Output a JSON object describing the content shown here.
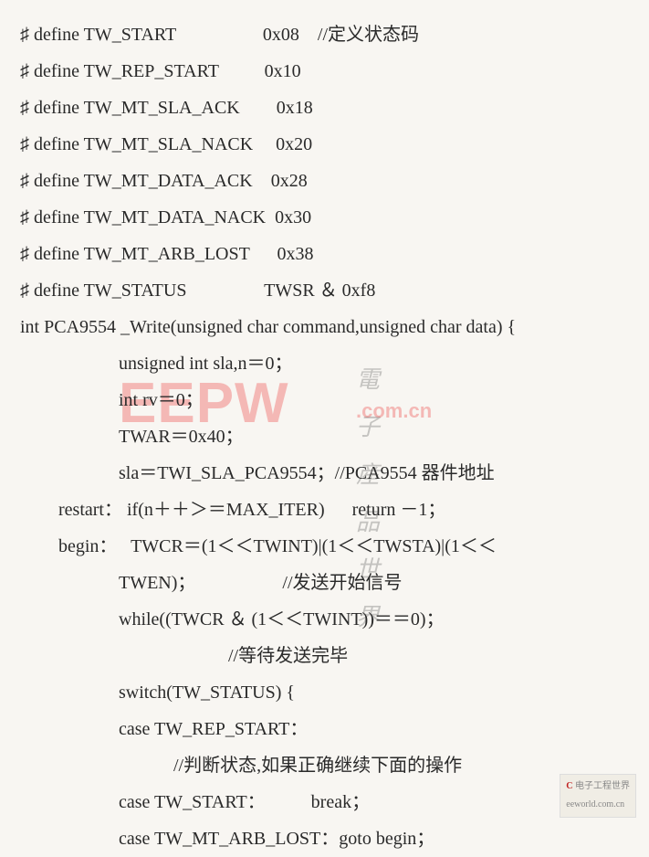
{
  "defines": [
    {
      "hash": "♯",
      "keyword": "define",
      "name": "TW_START",
      "value": "0x08",
      "comment": "//定义状态码"
    },
    {
      "hash": "♯",
      "keyword": "define",
      "name": "TW_REP_START",
      "value": "0x10",
      "comment": ""
    },
    {
      "hash": "♯",
      "keyword": "define",
      "name": "TW_MT_SLA_ACK",
      "value": "0x18",
      "comment": ""
    },
    {
      "hash": "♯",
      "keyword": "define",
      "name": "TW_MT_SLA_NACK",
      "value": "0x20",
      "comment": ""
    },
    {
      "hash": "♯",
      "keyword": "define",
      "name": "TW_MT_DATA_ACK",
      "value": "0x28",
      "comment": ""
    },
    {
      "hash": "♯",
      "keyword": "define",
      "name": "TW_MT_DATA_NACK",
      "value": "0x30",
      "comment": ""
    },
    {
      "hash": "♯",
      "keyword": "define",
      "name": "TW_MT_ARB_LOST",
      "value": "0x38",
      "comment": ""
    },
    {
      "hash": "♯",
      "keyword": "define",
      "name": "TW_STATUS",
      "value": "TWSR ＆ 0xf8",
      "comment": ""
    }
  ],
  "func_sig": "int PCA9554 _Write(unsigned char command,unsigned char data) {",
  "body": [
    "unsigned int sla,n＝0；",
    "int rv＝0；",
    "TWAR＝0x40；",
    "sla＝TWI_SLA_PCA9554；//PCA9554 器件地址"
  ],
  "restart_label": "restart：",
  "restart_code": "if(n＋＋＞＝MAX_ITER)      return －1；",
  "begin_label": "begin：",
  "begin_line1": "TWCR＝(1＜＜TWINT)|(1＜＜TWSTA)|(1＜＜",
  "begin_line2": "TWEN)；                   //发送开始信号",
  "begin_line3": "while((TWCR ＆ (1＜＜TWINT))＝＝0)；",
  "begin_line4": "                        //等待发送完毕",
  "begin_line5": "switch(TW_STATUS) {",
  "begin_line6": "case TW_REP_START：",
  "begin_line7": "            //判断状态,如果正确继续下面的操作",
  "begin_line8": "case TW_START：          break；",
  "begin_line9": "case TW_MT_ARB_LOST：goto begin；",
  "watermark": {
    "main": "EEPW",
    "chinese": "電子産品世界",
    "url": ".com.cn"
  },
  "footer": {
    "red": "C",
    "text1": "电子工程世界",
    "text2": "eeworld.com.cn"
  },
  "style": {
    "bg_color": "#f8f6f2",
    "text_color": "#2a2a2a",
    "font_size": 20,
    "watermark_red": "rgba(230,0,0,0.25)",
    "watermark_gray": "rgba(100,100,100,0.35)"
  }
}
